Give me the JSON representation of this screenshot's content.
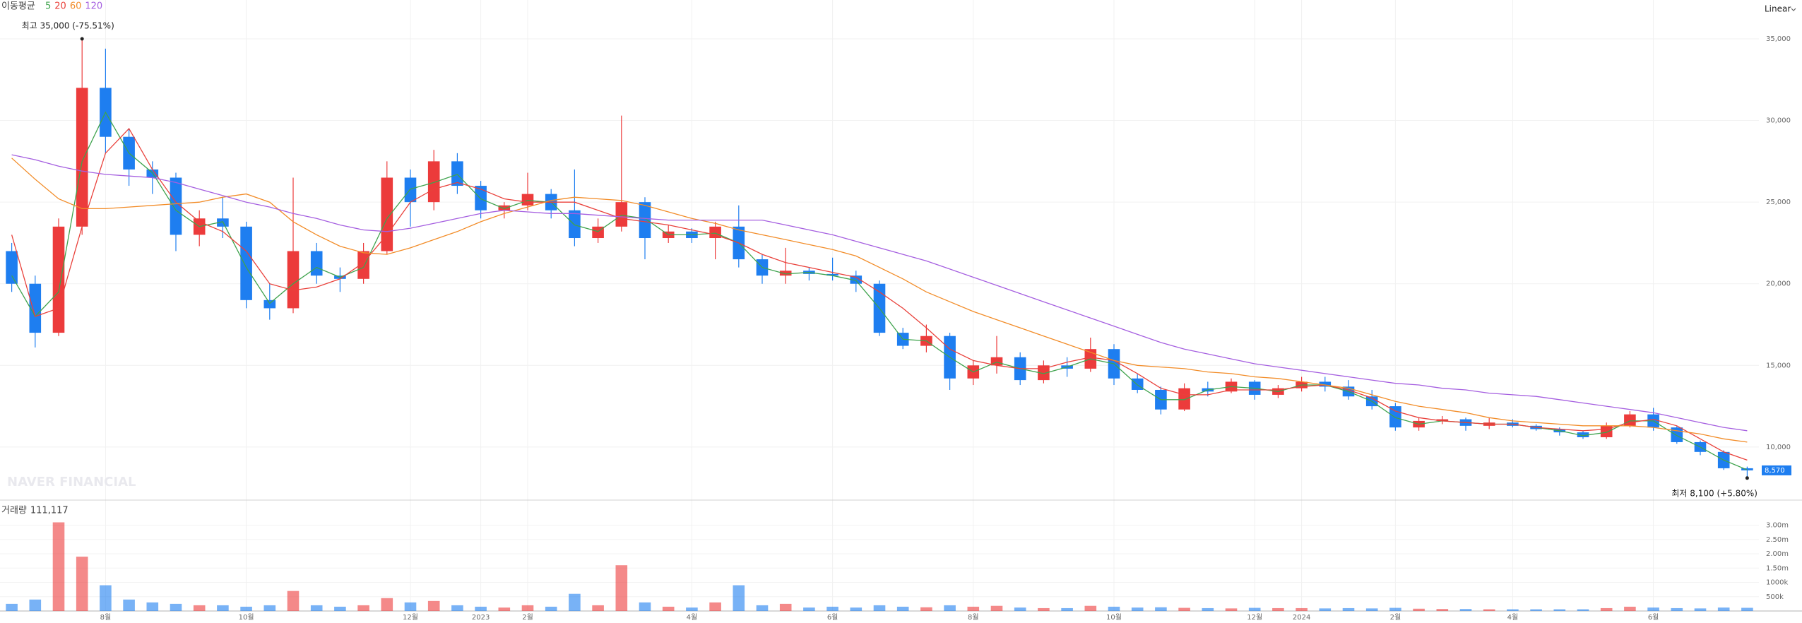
{
  "chart_data": {
    "type": "candlestick",
    "ma_legend_title": "이동평균",
    "scale_mode": "Linear",
    "watermark": "NAVER FINANCIAL",
    "last_price_label": "8,570",
    "annotations": [
      {
        "text": "최고 35,000 (-75.51%)",
        "at": "max"
      },
      {
        "text": "최저 8,100 (+5.80%)",
        "at": "min"
      }
    ],
    "up_color": "#ec3b3b",
    "down_color": "#1e7ef0",
    "categories": [
      null,
      null,
      null,
      null,
      "8월",
      null,
      null,
      null,
      null,
      null,
      "10월",
      null,
      null,
      null,
      null,
      null,
      null,
      "12월",
      null,
      null,
      "2023",
      null,
      "2월",
      null,
      null,
      null,
      null,
      null,
      null,
      "4월",
      null,
      null,
      null,
      null,
      null,
      "6월",
      null,
      null,
      null,
      null,
      null,
      "8월",
      null,
      null,
      null,
      null,
      null,
      "10월",
      null,
      null,
      null,
      null,
      null,
      "12월",
      null,
      "2024",
      null,
      null,
      null,
      "2월",
      null,
      null,
      null,
      null,
      "4월",
      null,
      null,
      null,
      null,
      null,
      "6월",
      null,
      null,
      null,
      null
    ],
    "open": [
      22000,
      20000,
      17000,
      23500,
      32000,
      29000,
      27000,
      26500,
      23000,
      24000,
      23500,
      19000,
      18500,
      22000,
      20500,
      20300,
      22000,
      26500,
      25000,
      27500,
      26000,
      24500,
      24800,
      25500,
      24500,
      22800,
      23500,
      25000,
      22800,
      23200,
      22800,
      23500,
      21500,
      20500,
      20800,
      20600,
      20500,
      20000,
      17000,
      16200,
      16800,
      14200,
      15000,
      15500,
      14100,
      15000,
      14800,
      16000,
      14200,
      13500,
      12300,
      13600,
      13400,
      14000,
      13200,
      13600,
      14000,
      13700,
      13100,
      12500,
      11200,
      11600,
      11700,
      11300,
      11500,
      11300,
      11100,
      10900,
      10600,
      11300,
      12000,
      11200,
      10300,
      9700,
      8700
    ],
    "high": [
      22500,
      20500,
      24000,
      35000,
      34400,
      29500,
      27500,
      26800,
      24500,
      25300,
      23800,
      20000,
      26500,
      22500,
      21000,
      22500,
      27500,
      27000,
      28200,
      28000,
      26300,
      25000,
      26800,
      25800,
      27000,
      24000,
      30300,
      25300,
      23600,
      23400,
      23800,
      24800,
      21800,
      22200,
      21000,
      21600,
      20800,
      20200,
      17300,
      17500,
      17000,
      15300,
      16800,
      15800,
      15300,
      15500,
      16700,
      16300,
      14500,
      13700,
      13900,
      14000,
      14200,
      14100,
      13800,
      14300,
      14300,
      14100,
      13500,
      12700,
      11800,
      11900,
      11800,
      11800,
      11700,
      11400,
      11200,
      11000,
      11500,
      12200,
      12400,
      11300,
      10400,
      9800,
      8800
    ],
    "low": [
      19500,
      16100,
      16800,
      23000,
      28000,
      26000,
      25500,
      22000,
      22300,
      22800,
      18500,
      17800,
      18200,
      20000,
      19500,
      20000,
      21800,
      23500,
      24500,
      25500,
      24000,
      24000,
      24500,
      24000,
      22300,
      22500,
      23200,
      21500,
      22500,
      22500,
      21500,
      21000,
      20000,
      20000,
      20200,
      20200,
      19500,
      16800,
      16000,
      15800,
      13500,
      13800,
      14500,
      13800,
      13900,
      14300,
      14600,
      13800,
      13300,
      12000,
      12200,
      13100,
      13300,
      12900,
      13000,
      13400,
      13400,
      12900,
      12300,
      11000,
      11000,
      11400,
      11000,
      11100,
      11200,
      11000,
      10700,
      10500,
      10500,
      11200,
      11000,
      10200,
      9500,
      8600,
      8100
    ],
    "close": [
      20000,
      17000,
      23500,
      32000,
      29000,
      27000,
      26500,
      23000,
      24000,
      23500,
      19000,
      18500,
      22000,
      20500,
      20300,
      22000,
      26500,
      25000,
      27500,
      26000,
      24500,
      24800,
      25500,
      24500,
      22800,
      23500,
      25000,
      22800,
      23200,
      22800,
      23500,
      21500,
      20500,
      20800,
      20600,
      20500,
      20000,
      17000,
      16200,
      16800,
      14200,
      15000,
      15500,
      14100,
      15000,
      14800,
      16000,
      14200,
      13500,
      12300,
      13600,
      13400,
      14000,
      13200,
      13600,
      14000,
      13700,
      13100,
      12500,
      11200,
      11600,
      11700,
      11300,
      11500,
      11300,
      11100,
      10900,
      10600,
      11300,
      12000,
      11200,
      10300,
      9700,
      8700,
      8570
    ],
    "series": [
      {
        "name": "5",
        "color": "#3fa34d",
        "values": [
          20500,
          18000,
          19500,
          27500,
          30500,
          28000,
          26800,
          24500,
          23500,
          23800,
          21000,
          18800,
          20000,
          21000,
          20400,
          21000,
          24000,
          25800,
          26200,
          26700,
          25200,
          24600,
          25100,
          25000,
          23600,
          23200,
          24200,
          24000,
          23000,
          23000,
          23100,
          22500,
          21000,
          20600,
          20700,
          20500,
          20200,
          18500,
          16600,
          16500,
          15500,
          14600,
          15200,
          14800,
          14500,
          14900,
          15400,
          15100,
          13800,
          12900,
          12900,
          13500,
          13700,
          13600,
          13400,
          13800,
          13800,
          13400,
          12800,
          11800,
          11400,
          11600,
          11500,
          11400,
          11400,
          11200,
          11000,
          10700,
          10900,
          11600,
          11600,
          10700,
          10000,
          9200,
          8600
        ]
      },
      {
        "name": "20",
        "color": "#e9413b",
        "values": [
          23000,
          18000,
          18500,
          23500,
          28000,
          29500,
          27000,
          25000,
          23800,
          23200,
          22000,
          20000,
          19600,
          19800,
          20300,
          21300,
          23000,
          25000,
          25800,
          26200,
          25800,
          25200,
          25000,
          25000,
          25000,
          24500,
          24000,
          23800,
          23600,
          23300,
          23000,
          22500,
          21800,
          21300,
          21000,
          20700,
          20400,
          19500,
          18500,
          17300,
          16000,
          15300,
          15000,
          14800,
          14800,
          15200,
          15500,
          15300,
          14500,
          13600,
          13200,
          13200,
          13500,
          13500,
          13500,
          13700,
          13800,
          13500,
          13000,
          12200,
          11800,
          11600,
          11500,
          11400,
          11400,
          11200,
          11100,
          11000,
          11100,
          11500,
          11700,
          11300,
          10500,
          9700,
          9200
        ]
      },
      {
        "name": "60",
        "color": "#f28c28",
        "values": [
          27700,
          26400,
          25200,
          24600,
          24600,
          24700,
          24800,
          24900,
          25000,
          25300,
          25500,
          25000,
          23800,
          23000,
          22300,
          21900,
          21800,
          22200,
          22700,
          23200,
          23800,
          24300,
          24700,
          25100,
          25300,
          25200,
          25100,
          24800,
          24400,
          24000,
          23700,
          23300,
          23000,
          22700,
          22400,
          22100,
          21700,
          21000,
          20300,
          19500,
          18900,
          18300,
          17800,
          17300,
          16800,
          16300,
          15800,
          15300,
          15000,
          14900,
          14800,
          14600,
          14500,
          14300,
          14200,
          14000,
          13800,
          13600,
          13200,
          12800,
          12500,
          12300,
          12100,
          11800,
          11600,
          11500,
          11400,
          11300,
          11300,
          11300,
          11200,
          11000,
          10800,
          10500,
          10300
        ]
      },
      {
        "name": "120",
        "color": "#a55fe0",
        "values": [
          27900,
          27600,
          27200,
          26900,
          26700,
          26600,
          26500,
          26200,
          25800,
          25400,
          25000,
          24700,
          24300,
          24000,
          23600,
          23300,
          23200,
          23400,
          23700,
          24000,
          24300,
          24500,
          24400,
          24300,
          24300,
          24200,
          24100,
          24000,
          23900,
          23900,
          23900,
          23900,
          23900,
          23600,
          23300,
          23000,
          22600,
          22200,
          21800,
          21400,
          20900,
          20400,
          19900,
          19400,
          18900,
          18400,
          17900,
          17400,
          16900,
          16400,
          16000,
          15700,
          15400,
          15100,
          14900,
          14700,
          14500,
          14300,
          14100,
          13900,
          13800,
          13600,
          13500,
          13300,
          13200,
          13100,
          12900,
          12700,
          12500,
          12300,
          12100,
          11800,
          11500,
          11200,
          11000
        ]
      }
    ],
    "ylim": [
      6880,
      37380
    ],
    "yticks": [
      {
        "value": 10000,
        "label": "10,000"
      },
      {
        "value": 15000,
        "label": "15,000"
      },
      {
        "value": 20000,
        "label": "20,000"
      },
      {
        "value": 25000,
        "label": "25,000"
      },
      {
        "value": 30000,
        "label": "30,000"
      },
      {
        "value": 35000,
        "label": "35,000"
      }
    ],
    "grid": true,
    "volume": {
      "title": "거래량",
      "readout": "111,117",
      "values": [
        250000,
        400000,
        3100000,
        1900000,
        900000,
        400000,
        300000,
        250000,
        200000,
        200000,
        150000,
        200000,
        700000,
        200000,
        150000,
        200000,
        450000,
        300000,
        350000,
        200000,
        150000,
        120000,
        200000,
        150000,
        600000,
        200000,
        1600000,
        300000,
        150000,
        120000,
        300000,
        900000,
        200000,
        250000,
        120000,
        150000,
        120000,
        200000,
        150000,
        130000,
        200000,
        150000,
        180000,
        120000,
        100000,
        100000,
        180000,
        150000,
        120000,
        130000,
        110000,
        100000,
        90000,
        110000,
        100000,
        100000,
        90000,
        100000,
        90000,
        110000,
        80000,
        70000,
        70000,
        60000,
        60000,
        60000,
        60000,
        60000,
        100000,
        150000,
        120000,
        100000,
        90000,
        120000,
        111117
      ],
      "ylim": [
        0,
        3680000
      ],
      "yticks": [
        {
          "value": 500000,
          "label": "500k"
        },
        {
          "value": 1000000,
          "label": "1000k"
        },
        {
          "value": 1500000,
          "label": "1.50m"
        },
        {
          "value": 2000000,
          "label": "2.00m"
        },
        {
          "value": 2500000,
          "label": "2.50m"
        },
        {
          "value": 3000000,
          "label": "3.00m"
        }
      ]
    }
  }
}
